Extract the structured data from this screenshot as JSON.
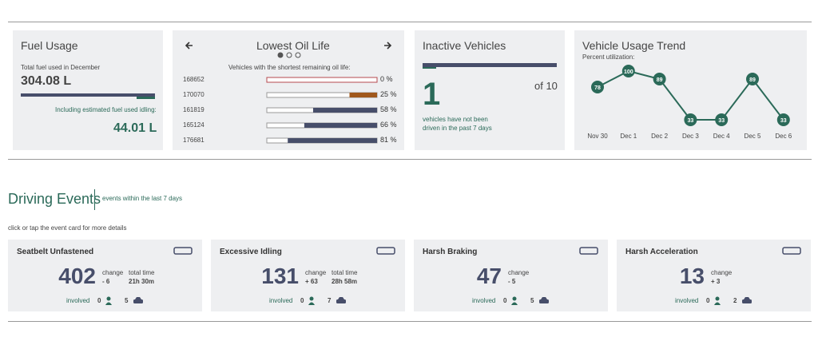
{
  "fuel": {
    "title": "Fuel Usage",
    "label": "Total fuel used in December",
    "value": "304.08 L",
    "idle_label": "Including estimated fuel used idling:",
    "idle_value": "44.01 L"
  },
  "oil": {
    "title": "Lowest Oil Life",
    "subtitle": "Vehicles with the shortest remaining oil life:",
    "vehicles": [
      "168652",
      "170070",
      "161819",
      "165124",
      "176681"
    ],
    "values": [
      0,
      25,
      58,
      66,
      81
    ],
    "value_labels": [
      "0 %",
      "25 %",
      "58 %",
      "66 %",
      "81 %"
    ],
    "colors": [
      "#b5484e",
      "#a0581c",
      "#474e6a",
      "#474e6a",
      "#474e6a"
    ]
  },
  "inactive": {
    "title": "Inactive Vehicles",
    "count": "1",
    "total": "of 10",
    "note": [
      "vehicles have not been",
      "driven in the past 7 days"
    ]
  },
  "chart_data": {
    "type": "line",
    "title": "Vehicle Usage Trend",
    "subtitle": "Percent utilization:",
    "categories": [
      "Nov 30",
      "Dec 1",
      "Dec 2",
      "Dec 3",
      "Dec 4",
      "Dec 5",
      "Dec 6"
    ],
    "values": [
      78,
      100,
      89,
      33,
      33,
      89,
      33
    ],
    "color": "#2b6a59"
  },
  "events": {
    "title": "Driving Events",
    "subtitle": "events within the last 7 days",
    "hint": "click or tap the event card for more details",
    "change_label": "change",
    "time_label": "total time",
    "involved_label": "involved",
    "cards": [
      {
        "name": "Seatbelt Unfastened",
        "count": "402",
        "change": "- 6",
        "time": "21h 30m",
        "people": "0",
        "vehicles": "5"
      },
      {
        "name": "Excessive Idling",
        "count": "131",
        "change": "+ 63",
        "time": "28h 58m",
        "people": "0",
        "vehicles": "7"
      },
      {
        "name": "Harsh Braking",
        "count": "47",
        "change": "- 5",
        "people": "0",
        "vehicles": "5"
      },
      {
        "name": "Harsh Acceleration",
        "count": "13",
        "change": "+ 3",
        "people": "0",
        "vehicles": "2"
      }
    ]
  }
}
